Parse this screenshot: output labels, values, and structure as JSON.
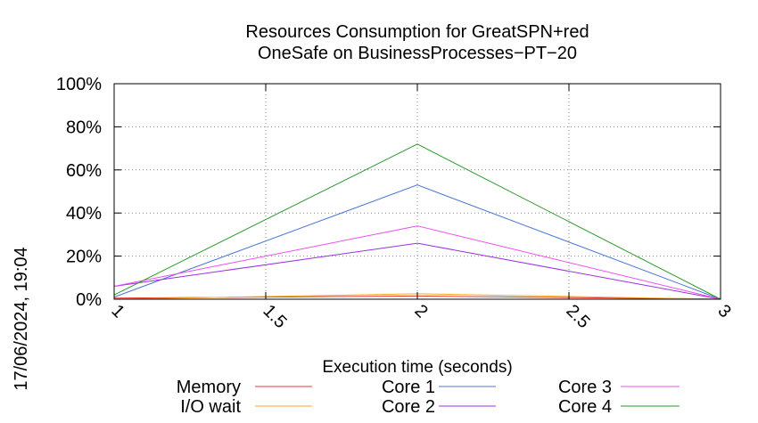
{
  "chart_data": {
    "type": "line",
    "title": [
      "Resources Consumption for GreatSPN+red",
      "OneSafe on BusinessProcesses−PT−20"
    ],
    "xlabel": "Execution time (seconds)",
    "ylabel": "",
    "x": [
      1,
      2,
      3
    ],
    "xlim": [
      1,
      3
    ],
    "ylim": [
      0,
      100
    ],
    "x_ticks": [
      1,
      1.5,
      2,
      2.5,
      3
    ],
    "x_tick_labels": [
      "1",
      "1.5",
      "2",
      "2.5",
      "3"
    ],
    "y_ticks": [
      0,
      20,
      40,
      60,
      80,
      100
    ],
    "y_tick_labels": [
      "0%",
      "20%",
      "40%",
      "60%",
      "80%",
      "100%"
    ],
    "grid": true,
    "legend_position": "bottom",
    "series": [
      {
        "name": "Memory",
        "color": "#e8372a",
        "values": [
          0.5,
          1.5,
          0
        ]
      },
      {
        "name": "I/O wait",
        "color": "#f5a623",
        "values": [
          0,
          2.5,
          0
        ]
      },
      {
        "name": "Core 1",
        "color": "#4a76d4",
        "values": [
          1,
          53,
          0
        ]
      },
      {
        "name": "Core 2",
        "color": "#9b30e0",
        "values": [
          6,
          26,
          0
        ]
      },
      {
        "name": "Core 3",
        "color": "#ee4ef0",
        "values": [
          6,
          34,
          0
        ]
      },
      {
        "name": "Core 4",
        "color": "#2a9a2a",
        "values": [
          2,
          72,
          0
        ]
      }
    ]
  },
  "timestamp": "17/06/2024, 19:04"
}
